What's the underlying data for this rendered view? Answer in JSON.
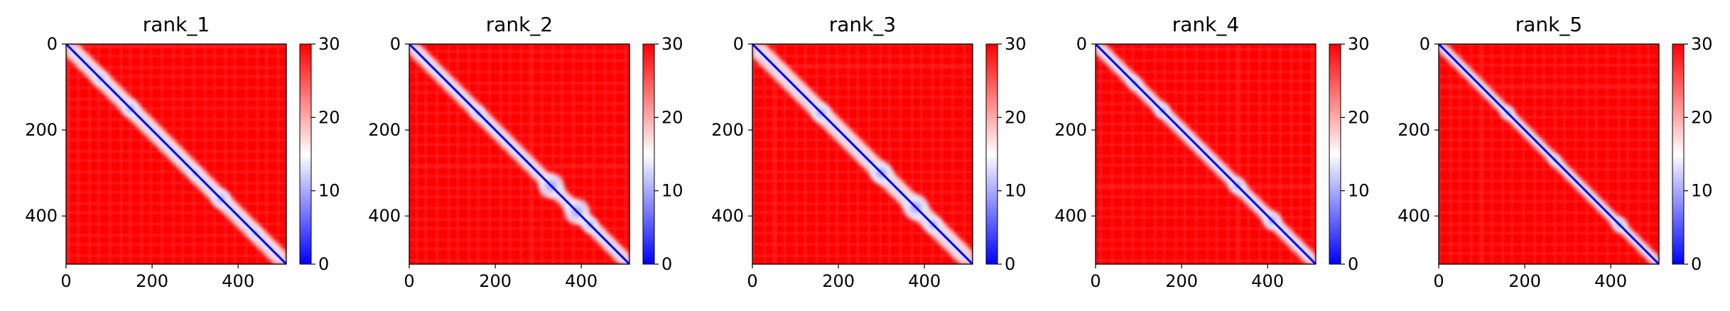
{
  "chart_data": [
    {
      "type": "heatmap",
      "title": "rank_1",
      "x_ticks": [
        "0",
        "200",
        "400"
      ],
      "y_ticks": [
        "0",
        "200",
        "400"
      ],
      "x_range": [
        0,
        512
      ],
      "y_range": [
        0,
        512
      ],
      "colorbar": {
        "min": 0,
        "max": 30,
        "ticks": [
          "0",
          "10",
          "20",
          "30"
        ],
        "colors": [
          "#0000ff",
          "#ffffff",
          "#ff0000"
        ]
      },
      "contact_blobs": [
        {
          "i": 80,
          "j": 80,
          "r": 18
        },
        {
          "i": 150,
          "j": 150,
          "r": 20
        },
        {
          "i": 300,
          "j": 300,
          "r": 14
        },
        {
          "i": 360,
          "j": 360,
          "r": 22
        },
        {
          "i": 440,
          "j": 440,
          "r": 14
        }
      ],
      "near_diag_width": 28
    },
    {
      "type": "heatmap",
      "title": "rank_2",
      "x_ticks": [
        "0",
        "200",
        "400"
      ],
      "y_ticks": [
        "0",
        "200",
        "400"
      ],
      "x_range": [
        0,
        512
      ],
      "y_range": [
        0,
        512
      ],
      "colorbar": {
        "min": 0,
        "max": 30,
        "ticks": [
          "0",
          "10",
          "20",
          "30"
        ],
        "colors": [
          "#0000ff",
          "#ffffff",
          "#ff0000"
        ]
      },
      "contact_blobs": [
        {
          "i": 160,
          "j": 160,
          "r": 16
        },
        {
          "i": 330,
          "j": 330,
          "r": 30
        },
        {
          "i": 390,
          "j": 390,
          "r": 30
        },
        {
          "i": 420,
          "j": 420,
          "r": 18
        }
      ],
      "near_diag_width": 24
    },
    {
      "type": "heatmap",
      "title": "rank_3",
      "x_ticks": [
        "0",
        "200",
        "400"
      ],
      "y_ticks": [
        "0",
        "200",
        "400"
      ],
      "x_range": [
        0,
        512
      ],
      "y_range": [
        0,
        512
      ],
      "colorbar": {
        "min": 0,
        "max": 30,
        "ticks": [
          "0",
          "10",
          "20",
          "30"
        ],
        "colors": [
          "#0000ff",
          "#ffffff",
          "#ff0000"
        ]
      },
      "contact_blobs": [
        {
          "i": 160,
          "j": 160,
          "r": 22
        },
        {
          "i": 300,
          "j": 300,
          "r": 26
        },
        {
          "i": 380,
          "j": 380,
          "r": 30
        },
        {
          "i": 420,
          "j": 420,
          "r": 20
        }
      ],
      "near_diag_width": 30
    },
    {
      "type": "heatmap",
      "title": "rank_4",
      "x_ticks": [
        "0",
        "200",
        "400"
      ],
      "y_ticks": [
        "0",
        "200",
        "400"
      ],
      "x_range": [
        0,
        512
      ],
      "y_range": [
        0,
        512
      ],
      "colorbar": {
        "min": 0,
        "max": 30,
        "ticks": [
          "0",
          "10",
          "20",
          "30"
        ],
        "colors": [
          "#0000ff",
          "#ffffff",
          "#ff0000"
        ]
      },
      "contact_blobs": [
        {
          "i": 90,
          "j": 90,
          "r": 16
        },
        {
          "i": 155,
          "j": 155,
          "r": 18
        },
        {
          "i": 330,
          "j": 330,
          "r": 20
        },
        {
          "i": 410,
          "j": 410,
          "r": 22
        }
      ],
      "near_diag_width": 22
    },
    {
      "type": "heatmap",
      "title": "rank_5",
      "x_ticks": [
        "0",
        "200",
        "400"
      ],
      "y_ticks": [
        "0",
        "200",
        "400"
      ],
      "x_range": [
        0,
        512
      ],
      "y_range": [
        0,
        512
      ],
      "colorbar": {
        "min": 0,
        "max": 30,
        "ticks": [
          "0",
          "10",
          "20",
          "30"
        ],
        "colors": [
          "#0000ff",
          "#ffffff",
          "#ff0000"
        ]
      },
      "contact_blobs": [
        {
          "i": 160,
          "j": 160,
          "r": 16
        },
        {
          "i": 270,
          "j": 270,
          "r": 14
        },
        {
          "i": 420,
          "j": 420,
          "r": 18
        }
      ],
      "near_diag_width": 18
    }
  ]
}
